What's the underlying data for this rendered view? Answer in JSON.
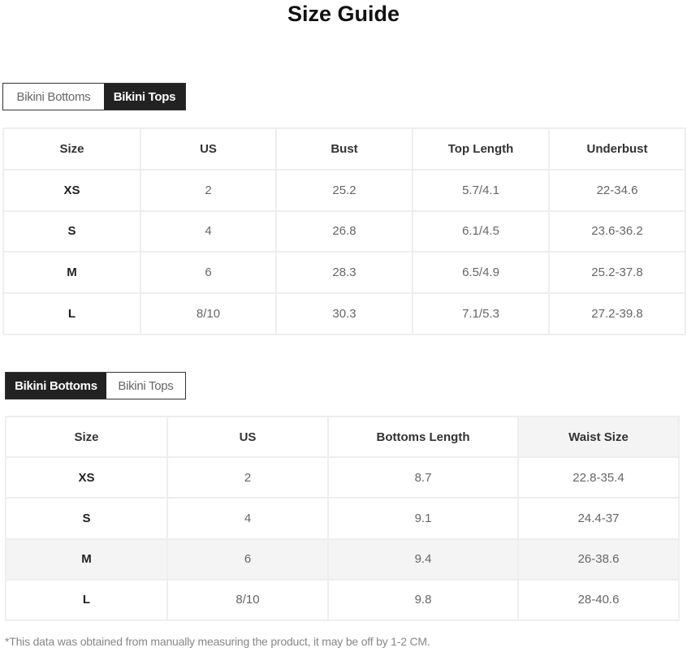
{
  "title": "Size Guide",
  "tops_section": {
    "tabs": [
      {
        "label": "Bikini Bottoms",
        "active": false
      },
      {
        "label": "Bikini Tops",
        "active": true
      }
    ],
    "headers": [
      "Size",
      "US",
      "Bust",
      "Top Length",
      "Underbust"
    ],
    "rows": [
      [
        "XS",
        "2",
        "25.2",
        "5.7/4.1",
        "22-34.6"
      ],
      [
        "S",
        "4",
        "26.8",
        "6.1/4.5",
        "23.6-36.2"
      ],
      [
        "M",
        "6",
        "28.3",
        "6.5/4.9",
        "25.2-37.8"
      ],
      [
        "L",
        "8/10",
        "30.3",
        "7.1/5.3",
        "27.2-39.8"
      ]
    ]
  },
  "bottoms_section": {
    "tabs": [
      {
        "label": "Bikini Bottoms",
        "active": true
      },
      {
        "label": "Bikini Tops",
        "active": false
      }
    ],
    "headers": [
      "Size",
      "US",
      "Bottoms Length",
      "Waist Size"
    ],
    "rows": [
      [
        "XS",
        "2",
        "8.7",
        "22.8-35.4"
      ],
      [
        "S",
        "4",
        "9.1",
        "24.4-37"
      ],
      [
        "M",
        "6",
        "9.4",
        "26-38.6"
      ],
      [
        "L",
        "8/10",
        "9.8",
        "28-40.6"
      ]
    ]
  },
  "footnote": "*This data was obtained from manually measuring the product, it may be off by 1-2 CM."
}
